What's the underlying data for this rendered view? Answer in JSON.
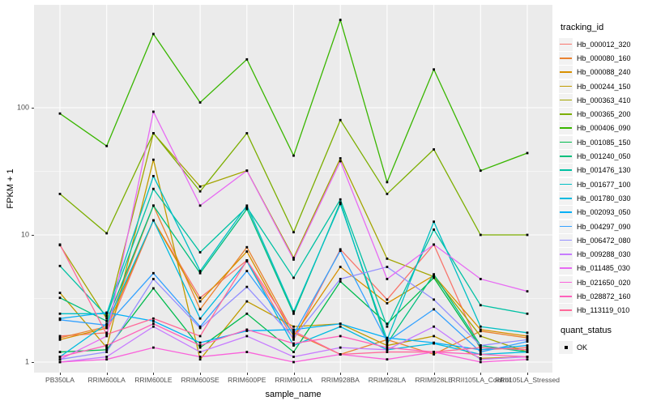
{
  "chart_data": {
    "type": "line",
    "title": "",
    "xlabel": "sample_name",
    "ylabel": "FPKM + 1",
    "y_scale": "log10",
    "y_ticks": [
      1,
      10,
      100
    ],
    "ylim_log": [
      -0.04,
      2.81
    ],
    "grid": "ggplot-gray",
    "panel_color": "#EBEBEB",
    "gridline_color": "#FFFFFF",
    "tick_text_color": "#4D4D4D",
    "marker": "black-square",
    "legend_position": "right",
    "categories": [
      "PB350LA",
      "RRIM600LA",
      "RRIM600LE",
      "RRIM600SE",
      "RRIM600PE",
      "RRIM901LA",
      "RRIM928BA",
      "RRIM928LA",
      "RRIM928LE",
      "RRII105LA_Control",
      "RRII105LA_Stressed"
    ],
    "series": [
      {
        "name": "Hb_000012_320",
        "color": "#F8766D",
        "values": [
          1.6,
          1.7,
          13,
          3.2,
          6.3,
          1.5,
          7.7,
          3.1,
          8.4,
          1.25,
          1.3
        ]
      },
      {
        "name": "Hb_000080_160",
        "color": "#EA8331",
        "values": [
          1.55,
          1.9,
          17,
          2.6,
          8.0,
          1.7,
          1.15,
          1.5,
          1.15,
          1.75,
          1.55
        ]
      },
      {
        "name": "Hb_000088_240",
        "color": "#D89000",
        "values": [
          1.5,
          1.85,
          13,
          3.0,
          7.4,
          1.6,
          5.6,
          2.9,
          4.8,
          1.8,
          1.6
        ]
      },
      {
        "name": "Hb_000244_150",
        "color": "#C09B00",
        "values": [
          3.5,
          1.3,
          39,
          1.05,
          3.0,
          1.9,
          2.0,
          1.35,
          1.6,
          1.07,
          1.1
        ]
      },
      {
        "name": "Hb_000363_410",
        "color": "#A3A500",
        "values": [
          8.3,
          2.2,
          63,
          24,
          32,
          6.6,
          40,
          6.5,
          4.7,
          1.6,
          1.2
        ]
      },
      {
        "name": "Hb_000365_200",
        "color": "#7CAE00",
        "values": [
          21,
          10.3,
          63,
          22,
          63,
          10.5,
          80,
          21,
          47,
          10,
          10
        ]
      },
      {
        "name": "Hb_000406_090",
        "color": "#39B600",
        "values": [
          90,
          50,
          380,
          110,
          240,
          42,
          490,
          26,
          200,
          32,
          44
        ]
      },
      {
        "name": "Hb_001085_150",
        "color": "#00BB4E",
        "values": [
          1.2,
          1.25,
          3.8,
          1.3,
          2.4,
          1.2,
          4.3,
          2.0,
          4.6,
          1.3,
          1.25
        ]
      },
      {
        "name": "Hb_001240_050",
        "color": "#00BF7D",
        "values": [
          3.2,
          2.1,
          17,
          5.0,
          16,
          2.4,
          18,
          1.4,
          4.9,
          1.35,
          1.2
        ]
      },
      {
        "name": "Hb_001476_130",
        "color": "#00C1A3",
        "values": [
          5.7,
          2.3,
          23,
          7.3,
          16.5,
          4.6,
          19,
          1.9,
          11,
          2.8,
          2.4
        ]
      },
      {
        "name": "Hb_001677_100",
        "color": "#00BFC4",
        "values": [
          2.4,
          2.4,
          29,
          5.2,
          17,
          2.5,
          17.5,
          1.5,
          12.7,
          1.9,
          1.7
        ]
      },
      {
        "name": "Hb_001780_030",
        "color": "#00BAE0",
        "values": [
          1.1,
          2.0,
          13,
          2.2,
          6.2,
          1.35,
          1.9,
          1.25,
          1.4,
          1.15,
          1.2
        ]
      },
      {
        "name": "Hb_002093_050",
        "color": "#00B0F6",
        "values": [
          2.2,
          2.45,
          2.1,
          1.42,
          1.76,
          1.8,
          2.0,
          1.55,
          1.42,
          1.25,
          1.35
        ]
      },
      {
        "name": "Hb_004297_090",
        "color": "#35A2FF",
        "values": [
          2.15,
          1.95,
          5.0,
          1.9,
          5.2,
          1.65,
          7.5,
          1.45,
          2.6,
          1.2,
          1.45
        ]
      },
      {
        "name": "Hb_006472_080",
        "color": "#9590FF",
        "values": [
          1.05,
          1.2,
          4.5,
          1.85,
          3.9,
          1.55,
          4.5,
          5.6,
          3.1,
          1.35,
          1.5
        ]
      },
      {
        "name": "Hb_009288_030",
        "color": "#C77CFF",
        "values": [
          1.0,
          1.1,
          1.9,
          1.2,
          1.6,
          1.1,
          1.3,
          1.25,
          1.9,
          1.05,
          1.1
        ]
      },
      {
        "name": "Hb_011485_030",
        "color": "#E76BF3",
        "values": [
          1.05,
          1.6,
          93,
          17,
          32,
          6.4,
          38,
          4.5,
          8.4,
          4.5,
          3.6
        ]
      },
      {
        "name": "Hb_021650_020",
        "color": "#FA62DB",
        "values": [
          1.0,
          1.05,
          1.3,
          1.1,
          1.2,
          1.0,
          1.15,
          1.05,
          1.2,
          1.0,
          1.05
        ]
      },
      {
        "name": "Hb_028872_160",
        "color": "#FF62BC",
        "values": [
          1.1,
          1.35,
          2.0,
          1.35,
          1.8,
          1.4,
          1.6,
          1.3,
          1.2,
          1.15,
          1.1
        ]
      },
      {
        "name": "Hb_113119_010",
        "color": "#FF6A9A",
        "values": [
          8.4,
          1.65,
          2.2,
          1.6,
          6.3,
          1.75,
          1.15,
          1.2,
          1.2,
          1.3,
          1.25
        ]
      }
    ],
    "legend_title": "tracking_id",
    "legend2_title": "quant_status",
    "legend2_items": [
      {
        "label": "OK",
        "marker": "black-square"
      }
    ]
  },
  "axes": {
    "x_title": "sample_name",
    "y_title": "FPKM + 1",
    "y_tick_labels": [
      "100",
      "10",
      "1"
    ]
  }
}
